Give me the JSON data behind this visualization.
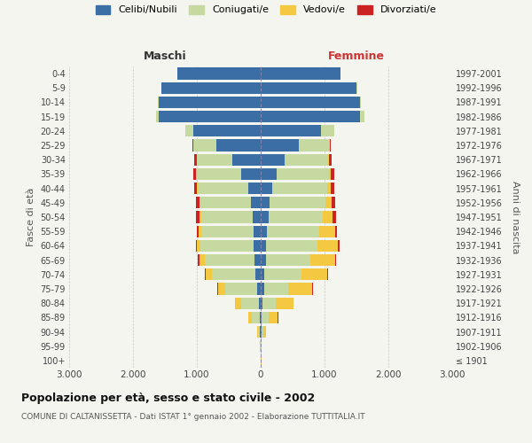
{
  "age_groups": [
    "100+",
    "95-99",
    "90-94",
    "85-89",
    "80-84",
    "75-79",
    "70-74",
    "65-69",
    "60-64",
    "55-59",
    "50-54",
    "45-49",
    "40-44",
    "35-39",
    "30-34",
    "25-29",
    "20-24",
    "15-19",
    "10-14",
    "5-9",
    "0-4"
  ],
  "birth_years": [
    "≤ 1901",
    "1902-1906",
    "1907-1911",
    "1912-1916",
    "1917-1921",
    "1922-1926",
    "1927-1931",
    "1932-1936",
    "1937-1941",
    "1942-1946",
    "1947-1951",
    "1952-1956",
    "1957-1961",
    "1962-1966",
    "1967-1971",
    "1972-1976",
    "1977-1981",
    "1982-1986",
    "1987-1991",
    "1992-1996",
    "1997-2001"
  ],
  "male": {
    "celibe": [
      2,
      3,
      8,
      15,
      25,
      50,
      80,
      100,
      110,
      115,
      130,
      150,
      200,
      300,
      450,
      700,
      1050,
      1600,
      1600,
      1550,
      1300
    ],
    "coniugato": [
      3,
      5,
      30,
      120,
      280,
      500,
      680,
      780,
      830,
      820,
      800,
      790,
      780,
      700,
      550,
      350,
      130,
      40,
      10,
      5,
      2
    ],
    "vedovo": [
      1,
      3,
      15,
      60,
      100,
      120,
      100,
      80,
      55,
      40,
      30,
      20,
      15,
      10,
      5,
      3,
      2,
      1,
      0,
      0,
      0
    ],
    "divorziato": [
      0,
      0,
      0,
      1,
      2,
      5,
      20,
      20,
      25,
      30,
      50,
      55,
      50,
      45,
      30,
      10,
      5,
      2,
      0,
      0,
      0
    ]
  },
  "female": {
    "nubile": [
      3,
      5,
      15,
      20,
      30,
      50,
      60,
      80,
      90,
      100,
      120,
      140,
      180,
      250,
      380,
      600,
      950,
      1550,
      1550,
      1500,
      1250
    ],
    "coniugata": [
      2,
      5,
      30,
      100,
      200,
      380,
      580,
      700,
      800,
      820,
      850,
      870,
      860,
      820,
      680,
      480,
      200,
      70,
      20,
      8,
      3
    ],
    "vedova": [
      2,
      8,
      40,
      150,
      280,
      380,
      400,
      380,
      320,
      240,
      160,
      100,
      60,
      30,
      15,
      8,
      3,
      2,
      1,
      0,
      0
    ],
    "divorziata": [
      0,
      0,
      0,
      2,
      3,
      5,
      10,
      20,
      30,
      35,
      55,
      55,
      55,
      50,
      35,
      15,
      5,
      2,
      0,
      0,
      0
    ]
  },
  "colors": {
    "celibe": "#3a6ea5",
    "coniugato": "#c5d9a0",
    "vedovo": "#f5c842",
    "divorziato": "#cc2222"
  },
  "xlim": 3000,
  "title": "Popolazione per età, sesso e stato civile - 2002",
  "subtitle": "COMUNE DI CALTANISSETTA - Dati ISTAT 1° gennaio 2002 - Elaborazione TUTTITALIA.IT",
  "ylabel_left": "Fasce di età",
  "ylabel_right": "Anni di nascita",
  "legend_labels": [
    "Celibi/Nubili",
    "Coniugati/e",
    "Vedovi/e",
    "Divorziati/e"
  ],
  "maschi_color": "#333333",
  "femmine_color": "#cc3333",
  "bg_color": "#f5f5f0"
}
